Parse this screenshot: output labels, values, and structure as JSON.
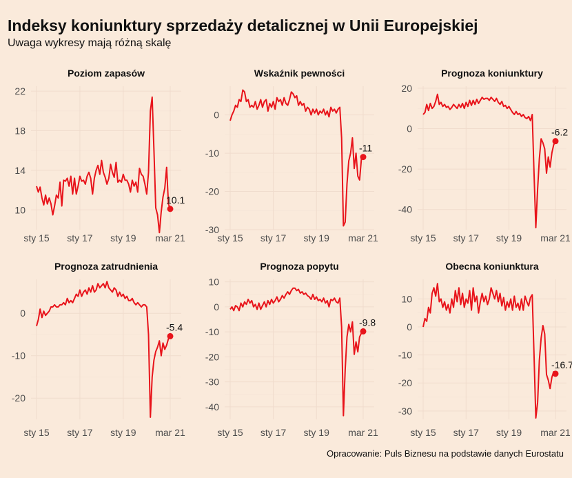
{
  "header": {
    "title": "Indeksy koniunktury sprzedaży detalicznej w Unii Europejskiej",
    "subtitle": "Uwaga wykresy mają różną skalę"
  },
  "caption": "Opracowanie: Puls Biznesu na podstawie danych Eurostatu",
  "colors": {
    "background": "#faeadb",
    "line": "#e8141b"
  },
  "chart_data": [
    {
      "type": "line",
      "title": "Poziom zapasów",
      "x_ticks": [
        "sty 15",
        "sty 17",
        "sty 19",
        "mar 21"
      ],
      "y_ticks": [
        10,
        14,
        18,
        22
      ],
      "ylim": [
        8,
        22.5
      ],
      "end_label": "10.1",
      "x": [
        "2015-01",
        "2015-02",
        "2015-03",
        "2015-04",
        "2015-05",
        "2015-06",
        "2015-07",
        "2015-08",
        "2015-09",
        "2015-10",
        "2015-11",
        "2015-12",
        "2016-01",
        "2016-02",
        "2016-03",
        "2016-04",
        "2016-05",
        "2016-06",
        "2016-07",
        "2016-08",
        "2016-09",
        "2016-10",
        "2016-11",
        "2016-12",
        "2017-01",
        "2017-02",
        "2017-03",
        "2017-04",
        "2017-05",
        "2017-06",
        "2017-07",
        "2017-08",
        "2017-09",
        "2017-10",
        "2017-11",
        "2017-12",
        "2018-01",
        "2018-02",
        "2018-03",
        "2018-04",
        "2018-05",
        "2018-06",
        "2018-07",
        "2018-08",
        "2018-09",
        "2018-10",
        "2018-11",
        "2018-12",
        "2019-01",
        "2019-02",
        "2019-03",
        "2019-04",
        "2019-05",
        "2019-06",
        "2019-07",
        "2019-08",
        "2019-09",
        "2019-10",
        "2019-11",
        "2019-12",
        "2020-01",
        "2020-02",
        "2020-03",
        "2020-04",
        "2020-05",
        "2020-06",
        "2020-07",
        "2020-08",
        "2020-09",
        "2020-10",
        "2020-11",
        "2020-12",
        "2021-01",
        "2021-02",
        "2021-03"
      ],
      "values": [
        12.4,
        11.8,
        12.3,
        11.2,
        10.5,
        11.5,
        10.6,
        11.2,
        10.6,
        9.5,
        10.4,
        11.5,
        11.2,
        12.8,
        10.4,
        13.0,
        12.9,
        13.2,
        12.4,
        13.4,
        11.6,
        13.2,
        11.6,
        12.4,
        13.4,
        12.9,
        13.0,
        12.6,
        13.4,
        13.8,
        13.2,
        11.6,
        13.2,
        14.0,
        14.5,
        13.6,
        15.0,
        13.8,
        13.3,
        12.6,
        13.2,
        14.6,
        13.8,
        13.3,
        14.8,
        12.8,
        13.0,
        12.8,
        13.6,
        13.0,
        13.0,
        12.6,
        11.8,
        13.0,
        12.4,
        12.8,
        11.8,
        14.2,
        13.6,
        13.4,
        12.6,
        11.6,
        13.8,
        20.0,
        21.4,
        16.0,
        10.2,
        9.5,
        7.7,
        9.8,
        11.3,
        12.2,
        14.3,
        10.6,
        10.1
      ]
    },
    {
      "type": "line",
      "title": "Wskaźnik pewności",
      "x_ticks": [
        "sty 15",
        "sty 17",
        "sty 19",
        "mar 21"
      ],
      "y_ticks": [
        -30,
        -20,
        -10,
        0
      ],
      "ylim": [
        -30,
        7.5
      ],
      "end_label": "-11",
      "x": [
        "2015-01",
        "2015-02",
        "2015-03",
        "2015-04",
        "2015-05",
        "2015-06",
        "2015-07",
        "2015-08",
        "2015-09",
        "2015-10",
        "2015-11",
        "2015-12",
        "2016-01",
        "2016-02",
        "2016-03",
        "2016-04",
        "2016-05",
        "2016-06",
        "2016-07",
        "2016-08",
        "2016-09",
        "2016-10",
        "2016-11",
        "2016-12",
        "2017-01",
        "2017-02",
        "2017-03",
        "2017-04",
        "2017-05",
        "2017-06",
        "2017-07",
        "2017-08",
        "2017-09",
        "2017-10",
        "2017-11",
        "2017-12",
        "2018-01",
        "2018-02",
        "2018-03",
        "2018-04",
        "2018-05",
        "2018-06",
        "2018-07",
        "2018-08",
        "2018-09",
        "2018-10",
        "2018-11",
        "2018-12",
        "2019-01",
        "2019-02",
        "2019-03",
        "2019-04",
        "2019-05",
        "2019-06",
        "2019-07",
        "2019-08",
        "2019-09",
        "2019-10",
        "2019-11",
        "2019-12",
        "2020-01",
        "2020-02",
        "2020-03",
        "2020-04",
        "2020-05",
        "2020-06",
        "2020-07",
        "2020-08",
        "2020-09",
        "2020-10",
        "2020-11",
        "2020-12",
        "2021-01",
        "2021-02",
        "2021-03"
      ],
      "values": [
        -1.5,
        0.0,
        1.0,
        2.5,
        2.0,
        4.0,
        3.5,
        6.5,
        6.0,
        3.5,
        4.0,
        2.0,
        2.5,
        2.0,
        3.5,
        1.5,
        2.5,
        4.0,
        2.0,
        3.5,
        4.0,
        1.0,
        3.0,
        2.0,
        3.5,
        1.5,
        4.5,
        3.5,
        4.0,
        2.5,
        4.5,
        3.0,
        2.5,
        4.0,
        6.0,
        5.5,
        4.5,
        5.0,
        2.5,
        3.5,
        2.5,
        3.0,
        1.0,
        2.0,
        1.5,
        0.0,
        1.5,
        0.5,
        1.5,
        0.0,
        1.0,
        0.5,
        1.5,
        0.0,
        1.0,
        -0.5,
        2.0,
        1.0,
        1.5,
        0.5,
        1.5,
        2.0,
        -6.0,
        -29.0,
        -28.0,
        -18.0,
        -12.0,
        -10.0,
        -6.0,
        -14.0,
        -10.0,
        -16.0,
        -17.0,
        -11.5,
        -11.0
      ]
    },
    {
      "type": "line",
      "title": "Prognoza koniunktury",
      "x_ticks": [
        "sty 15",
        "sty 17",
        "sty 19",
        "mar 21"
      ],
      "y_ticks": [
        -40,
        -20,
        0,
        20
      ],
      "ylim": [
        -50,
        21
      ],
      "end_label": "-6.2",
      "x": [
        "2015-01",
        "2015-02",
        "2015-03",
        "2015-04",
        "2015-05",
        "2015-06",
        "2015-07",
        "2015-08",
        "2015-09",
        "2015-10",
        "2015-11",
        "2015-12",
        "2016-01",
        "2016-02",
        "2016-03",
        "2016-04",
        "2016-05",
        "2016-06",
        "2016-07",
        "2016-08",
        "2016-09",
        "2016-10",
        "2016-11",
        "2016-12",
        "2017-01",
        "2017-02",
        "2017-03",
        "2017-04",
        "2017-05",
        "2017-06",
        "2017-07",
        "2017-08",
        "2017-09",
        "2017-10",
        "2017-11",
        "2017-12",
        "2018-01",
        "2018-02",
        "2018-03",
        "2018-04",
        "2018-05",
        "2018-06",
        "2018-07",
        "2018-08",
        "2018-09",
        "2018-10",
        "2018-11",
        "2018-12",
        "2019-01",
        "2019-02",
        "2019-03",
        "2019-04",
        "2019-05",
        "2019-06",
        "2019-07",
        "2019-08",
        "2019-09",
        "2019-10",
        "2019-11",
        "2019-12",
        "2020-01",
        "2020-02",
        "2020-03",
        "2020-04",
        "2020-05",
        "2020-06",
        "2020-07",
        "2020-08",
        "2020-09",
        "2020-10",
        "2020-11",
        "2020-12",
        "2021-01",
        "2021-02",
        "2021-03"
      ],
      "values": [
        7.0,
        8.0,
        12.0,
        9.0,
        12.5,
        10.0,
        11.0,
        13.5,
        17.0,
        12.0,
        13.0,
        11.0,
        12.0,
        10.5,
        11.0,
        9.5,
        10.5,
        12.0,
        11.0,
        10.0,
        12.0,
        10.5,
        12.5,
        10.0,
        13.0,
        11.0,
        14.0,
        11.5,
        14.0,
        12.0,
        14.5,
        12.5,
        14.0,
        15.5,
        14.5,
        15.0,
        15.0,
        14.0,
        15.5,
        14.5,
        13.5,
        15.0,
        13.0,
        12.0,
        13.5,
        11.0,
        11.5,
        10.0,
        11.0,
        9.5,
        8.0,
        7.0,
        8.5,
        7.0,
        7.5,
        6.0,
        7.0,
        5.5,
        5.0,
        6.0,
        4.0,
        7.0,
        -22.0,
        -49.0,
        -30.0,
        -15.0,
        -5.0,
        -7.0,
        -10.0,
        -22.0,
        -14.0,
        -19.0,
        -12.0,
        -8.0,
        -6.2
      ]
    },
    {
      "type": "line",
      "title": "Prognoza zatrudnienia",
      "x_ticks": [
        "sty 15",
        "sty 17",
        "sty 19",
        "mar 21"
      ],
      "y_ticks": [
        -20,
        -10,
        0
      ],
      "ylim": [
        -25,
        8
      ],
      "end_label": "-5.4",
      "x": [
        "2015-01",
        "2015-02",
        "2015-03",
        "2015-04",
        "2015-05",
        "2015-06",
        "2015-07",
        "2015-08",
        "2015-09",
        "2015-10",
        "2015-11",
        "2015-12",
        "2016-01",
        "2016-02",
        "2016-03",
        "2016-04",
        "2016-05",
        "2016-06",
        "2016-07",
        "2016-08",
        "2016-09",
        "2016-10",
        "2016-11",
        "2016-12",
        "2017-01",
        "2017-02",
        "2017-03",
        "2017-04",
        "2017-05",
        "2017-06",
        "2017-07",
        "2017-08",
        "2017-09",
        "2017-10",
        "2017-11",
        "2017-12",
        "2018-01",
        "2018-02",
        "2018-03",
        "2018-04",
        "2018-05",
        "2018-06",
        "2018-07",
        "2018-08",
        "2018-09",
        "2018-10",
        "2018-11",
        "2018-12",
        "2019-01",
        "2019-02",
        "2019-03",
        "2019-04",
        "2019-05",
        "2019-06",
        "2019-07",
        "2019-08",
        "2019-09",
        "2019-10",
        "2019-11",
        "2019-12",
        "2020-01",
        "2020-02",
        "2020-03",
        "2020-04",
        "2020-05",
        "2020-06",
        "2020-07",
        "2020-08",
        "2020-09",
        "2020-10",
        "2020-11",
        "2020-12",
        "2021-01",
        "2021-02",
        "2021-03"
      ],
      "values": [
        -3.0,
        -1.5,
        1.0,
        -1.0,
        0.5,
        -0.5,
        0.0,
        0.5,
        1.5,
        1.5,
        2.0,
        1.5,
        1.5,
        2.0,
        2.0,
        2.5,
        2.0,
        3.5,
        2.5,
        3.0,
        2.5,
        3.5,
        4.5,
        4.0,
        5.5,
        4.0,
        5.0,
        5.5,
        4.5,
        6.0,
        5.0,
        6.5,
        5.0,
        5.5,
        7.0,
        6.0,
        6.5,
        7.0,
        6.0,
        7.5,
        6.0,
        5.5,
        5.0,
        6.0,
        5.5,
        4.0,
        5.0,
        4.0,
        4.5,
        3.5,
        4.0,
        3.0,
        3.0,
        3.5,
        2.5,
        2.0,
        2.5,
        2.0,
        1.5,
        2.0,
        2.0,
        1.5,
        -5.0,
        -24.5,
        -15.0,
        -11.0,
        -9.0,
        -8.0,
        -6.5,
        -10.0,
        -7.0,
        -8.5,
        -7.5,
        -6.0,
        -5.4
      ]
    },
    {
      "type": "line",
      "title": "Prognoza popytu",
      "x_ticks": [
        "sty 15",
        "sty 17",
        "sty 19",
        "mar 21"
      ],
      "y_ticks": [
        -40,
        -30,
        -20,
        -10,
        0,
        10
      ],
      "ylim": [
        -45,
        11
      ],
      "end_label": "-9.8",
      "x": [
        "2015-01",
        "2015-02",
        "2015-03",
        "2015-04",
        "2015-05",
        "2015-06",
        "2015-07",
        "2015-08",
        "2015-09",
        "2015-10",
        "2015-11",
        "2015-12",
        "2016-01",
        "2016-02",
        "2016-03",
        "2016-04",
        "2016-05",
        "2016-06",
        "2016-07",
        "2016-08",
        "2016-09",
        "2016-10",
        "2016-11",
        "2016-12",
        "2017-01",
        "2017-02",
        "2017-03",
        "2017-04",
        "2017-05",
        "2017-06",
        "2017-07",
        "2017-08",
        "2017-09",
        "2017-10",
        "2017-11",
        "2017-12",
        "2018-01",
        "2018-02",
        "2018-03",
        "2018-04",
        "2018-05",
        "2018-06",
        "2018-07",
        "2018-08",
        "2018-09",
        "2018-10",
        "2018-11",
        "2018-12",
        "2019-01",
        "2019-02",
        "2019-03",
        "2019-04",
        "2019-05",
        "2019-06",
        "2019-07",
        "2019-08",
        "2019-09",
        "2019-10",
        "2019-11",
        "2019-12",
        "2020-01",
        "2020-02",
        "2020-03",
        "2020-04",
        "2020-05",
        "2020-06",
        "2020-07",
        "2020-08",
        "2020-09",
        "2020-10",
        "2020-11",
        "2020-12",
        "2021-01",
        "2021-02",
        "2021-03"
      ],
      "values": [
        -1.0,
        0.0,
        -1.5,
        0.5,
        0.0,
        -1.5,
        1.5,
        0.0,
        2.0,
        1.0,
        3.0,
        1.5,
        2.5,
        0.0,
        1.0,
        -1.0,
        1.5,
        -1.0,
        0.5,
        2.0,
        0.0,
        2.5,
        1.0,
        3.0,
        1.5,
        2.5,
        4.0,
        2.0,
        3.0,
        4.5,
        3.5,
        5.0,
        6.0,
        5.0,
        6.5,
        7.5,
        7.5,
        6.5,
        7.0,
        5.5,
        6.0,
        5.0,
        5.5,
        4.5,
        4.0,
        3.0,
        5.0,
        3.0,
        4.0,
        2.5,
        3.0,
        2.0,
        3.5,
        1.5,
        2.5,
        0.0,
        3.0,
        2.5,
        3.5,
        2.0,
        1.5,
        3.5,
        -8.0,
        -43.5,
        -25.0,
        -12.0,
        -7.0,
        -10.0,
        -6.0,
        -19.0,
        -14.0,
        -18.0,
        -12.0,
        -10.5,
        -9.8
      ]
    },
    {
      "type": "line",
      "title": "Obecna koniunktura",
      "x_ticks": [
        "sty 15",
        "sty 17",
        "sty 19",
        "mar 21"
      ],
      "y_ticks": [
        -30,
        -20,
        -10,
        0,
        10
      ],
      "ylim": [
        -33,
        17
      ],
      "end_label": "-16.7",
      "x": [
        "2015-01",
        "2015-02",
        "2015-03",
        "2015-04",
        "2015-05",
        "2015-06",
        "2015-07",
        "2015-08",
        "2015-09",
        "2015-10",
        "2015-11",
        "2015-12",
        "2016-01",
        "2016-02",
        "2016-03",
        "2016-04",
        "2016-05",
        "2016-06",
        "2016-07",
        "2016-08",
        "2016-09",
        "2016-10",
        "2016-11",
        "2016-12",
        "2017-01",
        "2017-02",
        "2017-03",
        "2017-04",
        "2017-05",
        "2017-06",
        "2017-07",
        "2017-08",
        "2017-09",
        "2017-10",
        "2017-11",
        "2017-12",
        "2018-01",
        "2018-02",
        "2018-03",
        "2018-04",
        "2018-05",
        "2018-06",
        "2018-07",
        "2018-08",
        "2018-09",
        "2018-10",
        "2018-11",
        "2018-12",
        "2019-01",
        "2019-02",
        "2019-03",
        "2019-04",
        "2019-05",
        "2019-06",
        "2019-07",
        "2019-08",
        "2019-09",
        "2019-10",
        "2019-11",
        "2019-12",
        "2020-01",
        "2020-02",
        "2020-03",
        "2020-04",
        "2020-05",
        "2020-06",
        "2020-07",
        "2020-08",
        "2020-09",
        "2020-10",
        "2020-11",
        "2020-12",
        "2021-01",
        "2021-02",
        "2021-03"
      ],
      "values": [
        0.0,
        3.0,
        2.0,
        7.0,
        5.0,
        12.0,
        14.0,
        11.0,
        15.5,
        9.0,
        10.0,
        7.0,
        9.0,
        6.0,
        8.0,
        5.0,
        10.0,
        7.0,
        13.0,
        9.0,
        14.0,
        8.0,
        12.0,
        7.0,
        10.0,
        8.5,
        13.0,
        6.0,
        14.0,
        9.0,
        11.0,
        5.0,
        9.0,
        12.0,
        9.0,
        11.0,
        8.0,
        10.0,
        14.0,
        12.0,
        10.0,
        13.0,
        9.0,
        12.0,
        7.5,
        10.5,
        6.0,
        9.0,
        7.0,
        10.0,
        6.0,
        11.0,
        7.0,
        8.5,
        6.0,
        10.0,
        6.0,
        11.0,
        9.0,
        7.5,
        10.5,
        11.5,
        -10.0,
        -32.5,
        -27.0,
        -12.0,
        -4.0,
        0.5,
        -2.5,
        -17.0,
        -19.0,
        -22.0,
        -18.0,
        -16.0,
        -16.7
      ]
    }
  ]
}
